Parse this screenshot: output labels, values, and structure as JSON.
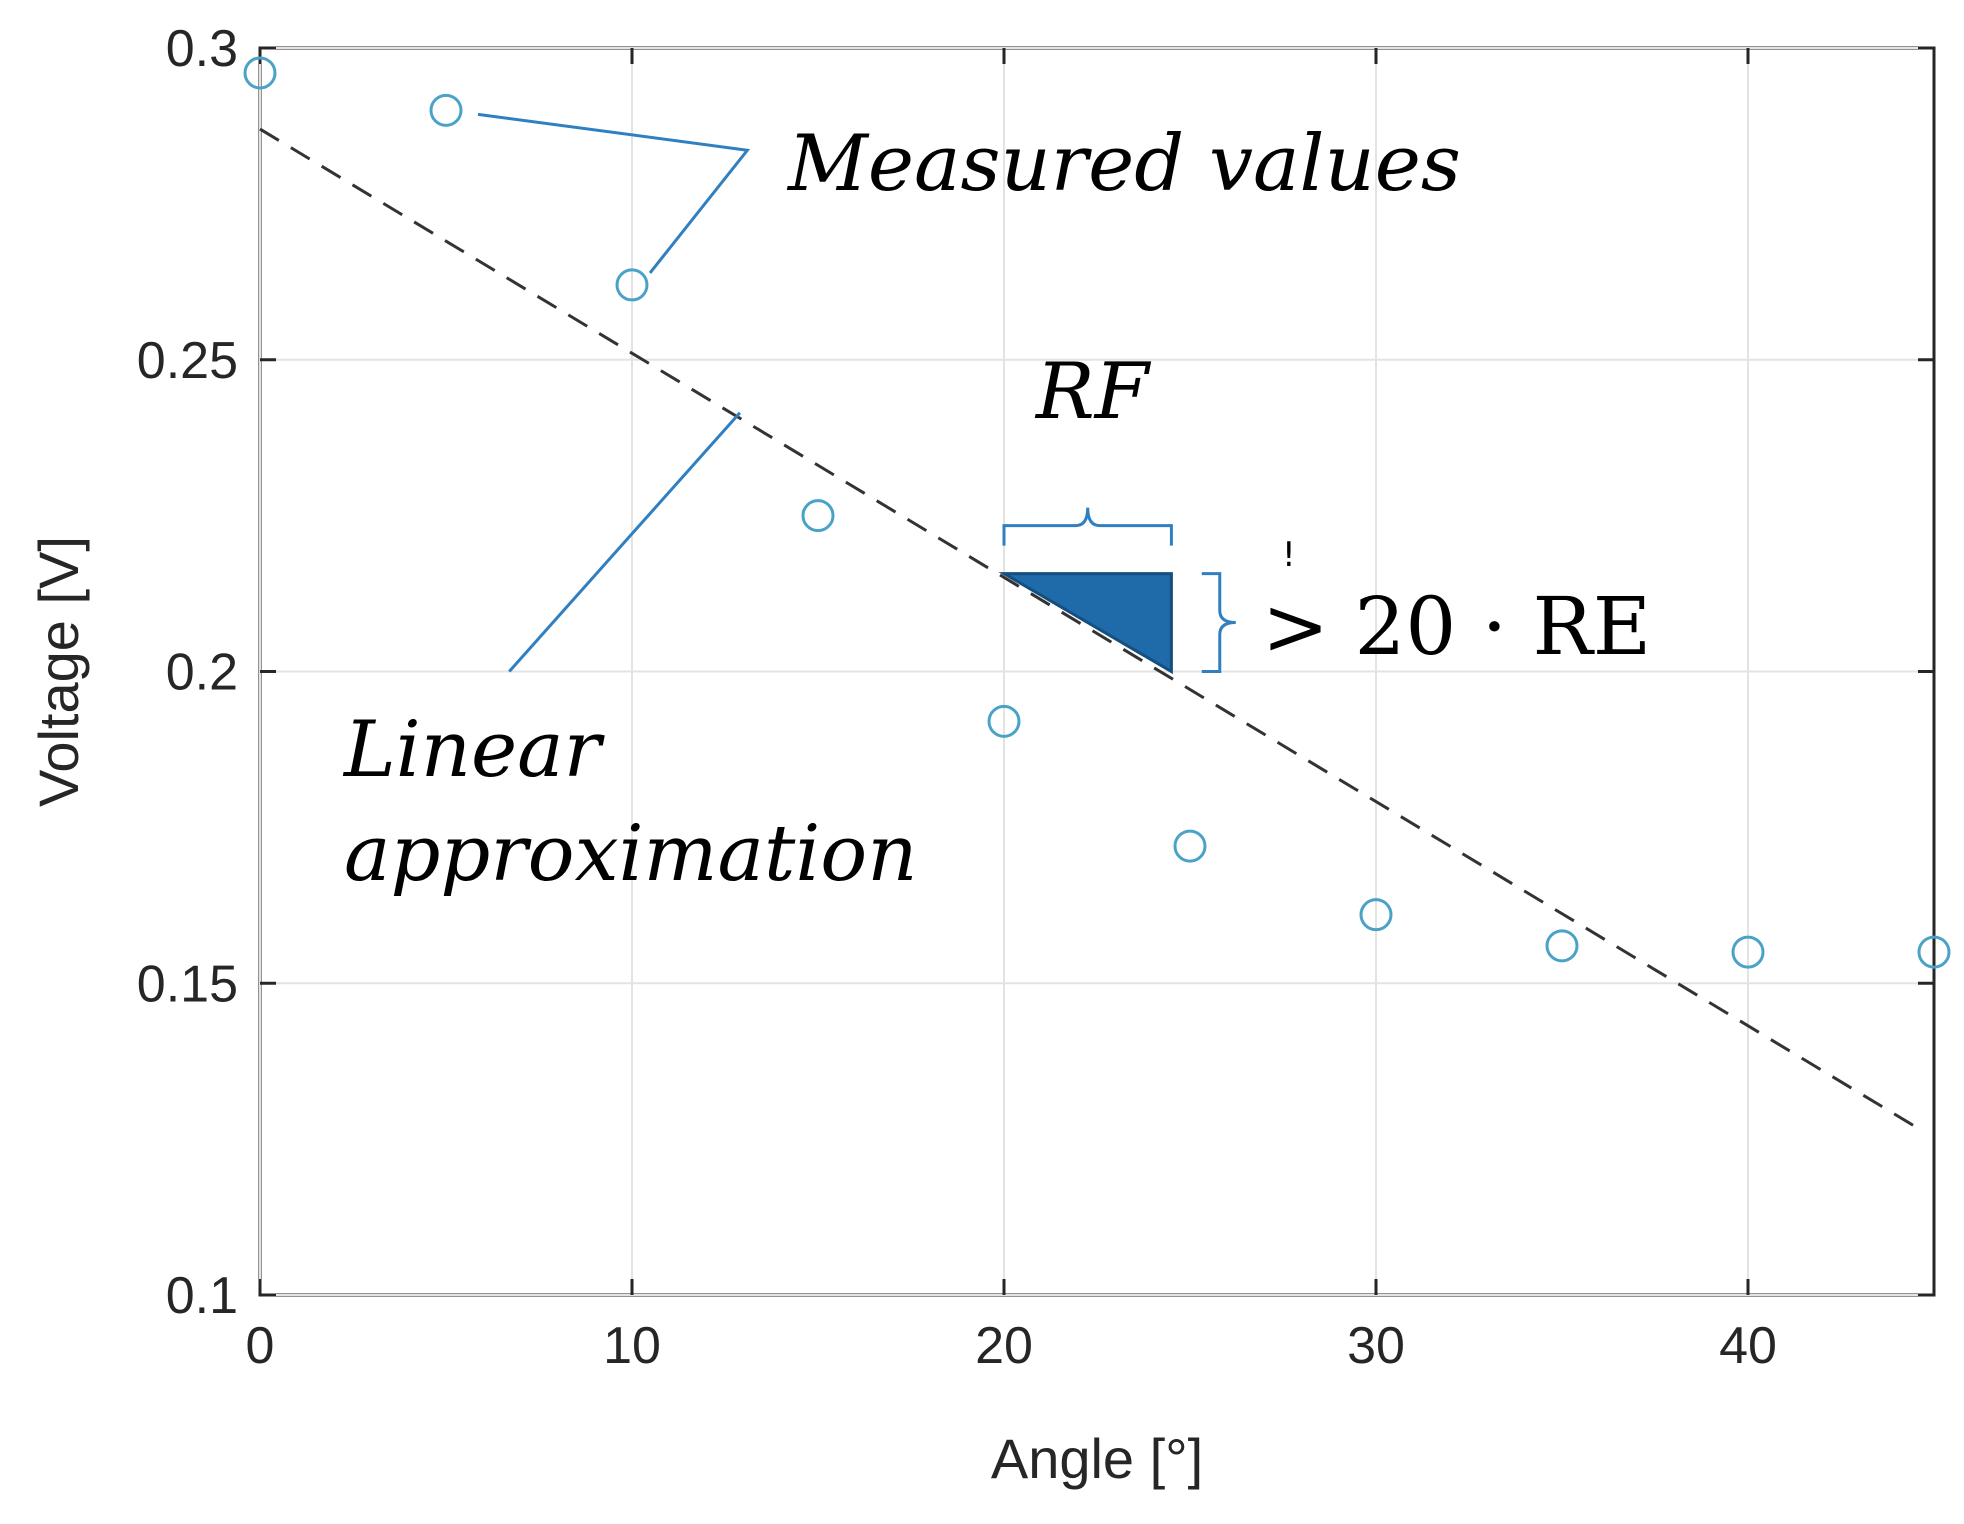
{
  "chart_data": {
    "type": "scatter",
    "title": "",
    "xlabel": "Angle [°]",
    "ylabel": "Voltage [V]",
    "xlim": [
      0,
      45
    ],
    "ylim": [
      0.1,
      0.3
    ],
    "xticks": [
      "0",
      "10",
      "20",
      "30",
      "40"
    ],
    "yticks": [
      "0.1",
      "0.15",
      "0.2",
      "0.25",
      "0.3"
    ],
    "grid": true,
    "series": [
      {
        "name": "Measured values",
        "type": "scatter",
        "marker": "circle",
        "color": "#4aa3c7",
        "x": [
          0,
          5,
          10,
          15,
          20,
          25,
          30,
          35,
          40,
          45
        ],
        "y": [
          0.296,
          0.29,
          0.262,
          0.225,
          0.192,
          0.172,
          0.161,
          0.156,
          0.155,
          0.155
        ]
      },
      {
        "name": "Linear approximation",
        "type": "line",
        "style": "dashed",
        "color": "#333333",
        "x": [
          0,
          44.5
        ],
        "y": [
          0.287,
          0.127
        ]
      }
    ],
    "annotations": {
      "measured_label": "Measured values",
      "linear_label_line1": "Linear",
      "linear_label_line2": "approximation",
      "rf_label": "RF",
      "condition_label": "> 20 · RE",
      "condition_mark": "!",
      "triangle": {
        "x": [
          20,
          24.5,
          24.5
        ],
        "y": [
          0.2157,
          0.2157,
          0.2
        ]
      },
      "triangle_color": "#1f6aa8",
      "bracket_color": "#2f7fc1",
      "leader_color": "#2f7fc1"
    }
  }
}
